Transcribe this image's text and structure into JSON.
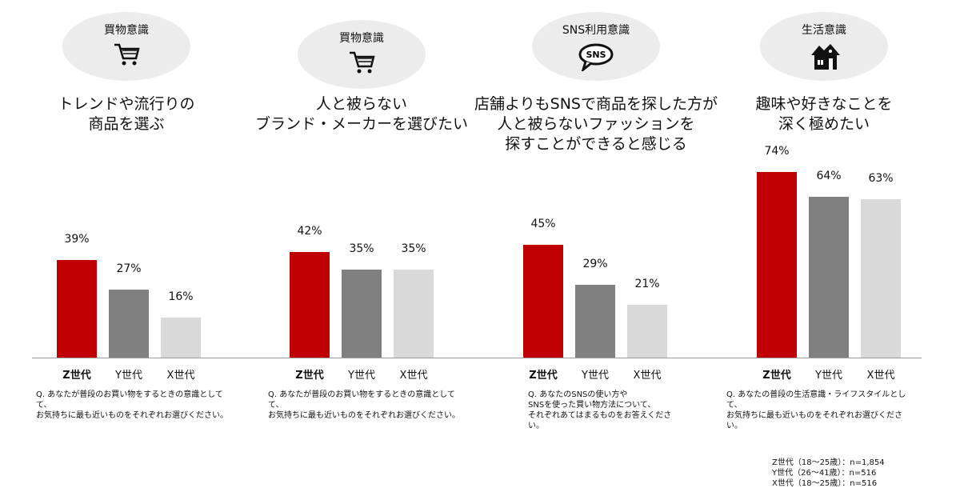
{
  "colors": {
    "Z世代": "#c00000",
    "Y世代": "#808080",
    "X世代": "#d9d9d9"
  },
  "panels": [
    {
      "category": "買物意識",
      "icon": "shopping-cart-icon",
      "title": "トレンドや流行りの\n商品を選ぶ",
      "question": "Q. あなたが普段のお買い物をするときの意識として\nて、\nお気持ちに最も近いものをそれぞれお選びください。"
    },
    {
      "category": "買物意識",
      "icon": "shopping-cart-icon",
      "title": "人と被らない\nブランド・メーカーを選びたい",
      "question": "Q. あなたが普段のお買い物をするときの意識として\nて、\nお気持ちに最も近いものをそれぞれお選びください。"
    },
    {
      "category": "SNS利用意識",
      "icon": "sns-speech-bubble-icon",
      "title": "店舗よりもSNSで商品を探した方が\n人と被らないファッションを\n探すことができると感じる",
      "question": " Q. あなたのSNSの使い方や\n SNSを使った買い物方法について、\n  それぞれあてはまるものをお答えくださ\nい。"
    },
    {
      "category": "生活意識",
      "icon": "house-icon",
      "title": "趣味や好きなことを\n深く極めたい",
      "question": " Q. あなたの普段の生活意識・ライフスタイルとし\nて、\n  お気持ちに最も近いものをそれぞれお選びくださ\nい。"
    }
  ],
  "chart_data": [
    {
      "type": "bar",
      "categories": [
        "Z世代",
        "Y世代",
        "X世代"
      ],
      "values": [
        39,
        27,
        16
      ],
      "unit": "%",
      "ylim": [
        0,
        80
      ]
    },
    {
      "type": "bar",
      "categories": [
        "Z世代",
        "Y世代",
        "X世代"
      ],
      "values": [
        42,
        35,
        35
      ],
      "unit": "%",
      "ylim": [
        0,
        80
      ]
    },
    {
      "type": "bar",
      "categories": [
        "Z世代",
        "Y世代",
        "X世代"
      ],
      "values": [
        45,
        29,
        21
      ],
      "unit": "%",
      "ylim": [
        0,
        80
      ]
    },
    {
      "type": "bar",
      "categories": [
        "Z世代",
        "Y世代",
        "X世代"
      ],
      "values": [
        74,
        64,
        63
      ],
      "unit": "%",
      "ylim": [
        0,
        80
      ]
    }
  ],
  "notes": [
    "Z世代（18〜25歳）：n=1,854",
    "Y世代（26〜41歳）：n=516",
    "X世代（18〜25歳）：n=516"
  ]
}
